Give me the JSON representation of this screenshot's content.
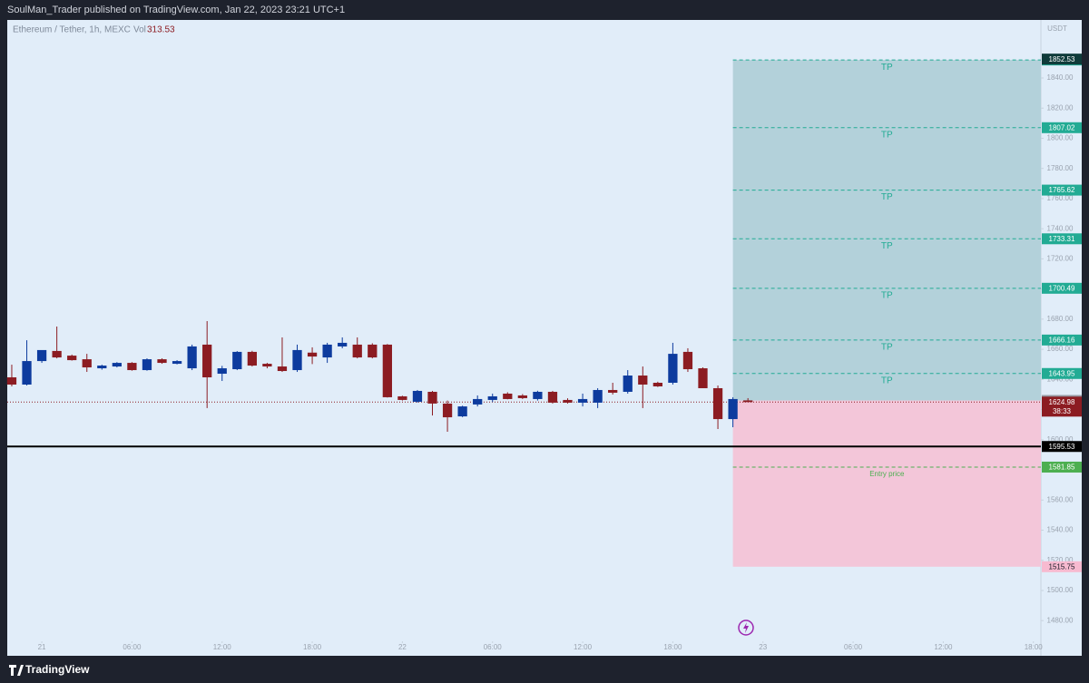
{
  "header": {
    "text": "SoulMan_Trader published on TradingView.com, Jan 22, 2023 23:21 UTC+1"
  },
  "footer": {
    "brand": "TradingView"
  },
  "chart_data": {
    "type": "candlestick",
    "symbol": "Ethereum / Tether, 1h, MEXC",
    "volume_label": "Vol",
    "volume": 313.53,
    "currency": "USDT",
    "up_color": "#0d3b9e",
    "down_color": "#8c1c22",
    "x": [
      -2,
      -1,
      0,
      1,
      2,
      3,
      4,
      5,
      6,
      7,
      8,
      9,
      10,
      11,
      12,
      13,
      14,
      15,
      16,
      17,
      18,
      19,
      20,
      21,
      22,
      23,
      24,
      25,
      26,
      27,
      28,
      29,
      30,
      31,
      32,
      33,
      34,
      35,
      36,
      37,
      38,
      39,
      40,
      41,
      42,
      43,
      44,
      45,
      46,
      47
    ],
    "open": [
      1641.4,
      1636.6,
      1652.2,
      1658.9,
      1655.8,
      1653.4,
      1647.4,
      1648.6,
      1651.0,
      1646.2,
      1653.4,
      1650.4,
      1647.4,
      1663.1,
      1643.8,
      1646.8,
      1658.3,
      1650.4,
      1648.6,
      1646.2,
      1657.8,
      1654.6,
      1661.9,
      1663.1,
      1663.1,
      1663.1,
      1628.8,
      1625.2,
      1631.8,
      1624.0,
      1615.5,
      1623.4,
      1626.4,
      1630.6,
      1629.4,
      1627.0,
      1631.8,
      1626.4,
      1624.6,
      1624.6,
      1633.0,
      1631.8,
      1642.6,
      1637.8,
      1637.8,
      1658.3,
      1647.4,
      1634.2,
      1613.7,
      1626.1
    ],
    "high": [
      1649.8,
      1666.0,
      1655.8,
      1675.1,
      1656.5,
      1657.0,
      1649.8,
      1651.5,
      1651.5,
      1654.0,
      1654.0,
      1652.8,
      1663.1,
      1678.7,
      1649.0,
      1658.8,
      1659.0,
      1651.0,
      1667.9,
      1663.1,
      1661.3,
      1664.3,
      1667.9,
      1667.9,
      1664.0,
      1663.5,
      1629.2,
      1633.0,
      1632.4,
      1626.0,
      1622.6,
      1629.4,
      1630.6,
      1631.5,
      1630.3,
      1632.5,
      1632.4,
      1627.5,
      1630.6,
      1634.2,
      1637.8,
      1646.2,
      1648.6,
      1638.5,
      1664.3,
      1660.7,
      1648.0,
      1636.0,
      1628.2,
      1627.6
    ],
    "low": [
      1635.4,
      1636.0,
      1651.0,
      1654.0,
      1652.5,
      1645.0,
      1646.5,
      1648.0,
      1645.8,
      1645.8,
      1650.4,
      1650.0,
      1646.2,
      1621.0,
      1639.0,
      1646.2,
      1648.6,
      1647.4,
      1645.0,
      1645.0,
      1650.2,
      1651.0,
      1660.7,
      1654.0,
      1654.0,
      1628.0,
      1626.0,
      1624.6,
      1616.1,
      1605.3,
      1615.0,
      1622.1,
      1625.0,
      1626.8,
      1627.0,
      1626.0,
      1624.0,
      1624.0,
      1622.1,
      1621.0,
      1630.0,
      1630.6,
      1621.0,
      1635.0,
      1636.6,
      1645.0,
      1634.2,
      1607.1,
      1608.3,
      1625.0
    ],
    "close": [
      1636.6,
      1652.2,
      1659.5,
      1654.6,
      1652.8,
      1648.0,
      1649.2,
      1651.0,
      1646.2,
      1653.4,
      1651.0,
      1652.2,
      1661.9,
      1641.4,
      1647.4,
      1658.3,
      1649.2,
      1648.6,
      1645.6,
      1659.5,
      1655.2,
      1663.1,
      1664.3,
      1654.6,
      1654.6,
      1628.2,
      1626.4,
      1632.4,
      1624.0,
      1614.9,
      1622.1,
      1627.0,
      1628.8,
      1627.0,
      1627.6,
      1631.8,
      1624.6,
      1624.6,
      1627.0,
      1633.0,
      1631.2,
      1642.6,
      1636.6,
      1635.4,
      1657.0,
      1646.8,
      1634.2,
      1613.7,
      1627.0,
      1624.98
    ],
    "xlim": [
      -2.3,
      66.5
    ],
    "xticks": [
      {
        "value": 0,
        "label": "21"
      },
      {
        "value": 6,
        "label": "06:00"
      },
      {
        "value": 12,
        "label": "12:00"
      },
      {
        "value": 18,
        "label": "18:00"
      },
      {
        "value": 24,
        "label": "22"
      },
      {
        "value": 30,
        "label": "06:00"
      },
      {
        "value": 36,
        "label": "12:00"
      },
      {
        "value": 42,
        "label": "18:00"
      },
      {
        "value": 48,
        "label": "23"
      },
      {
        "value": 54,
        "label": "06:00"
      },
      {
        "value": 60,
        "label": "12:00"
      },
      {
        "value": 66,
        "label": "18:00"
      }
    ],
    "ylim": [
      1467.5,
      1878.5
    ],
    "yticks": [
      {
        "value": 1480,
        "label": "1480.00"
      },
      {
        "value": 1500,
        "label": "1500.00"
      },
      {
        "value": 1520,
        "label": "1520.00"
      },
      {
        "value": 1540,
        "label": "1540.00"
      },
      {
        "value": 1560,
        "label": "1560.00"
      },
      {
        "value": 1580,
        "label": "1580.00"
      },
      {
        "value": 1600,
        "label": "1600.00"
      },
      {
        "value": 1620,
        "label": "1620.00"
      },
      {
        "value": 1640,
        "label": "1640.00"
      },
      {
        "value": 1660,
        "label": "1660.00"
      },
      {
        "value": 1680,
        "label": "1680.00"
      },
      {
        "value": 1700,
        "label": "1700.00"
      },
      {
        "value": 1720,
        "label": "1720.00"
      },
      {
        "value": 1740,
        "label": "1740.00"
      },
      {
        "value": 1760,
        "label": "1760.00"
      },
      {
        "value": 1780,
        "label": "1780.00"
      },
      {
        "value": 1800,
        "label": "1800.00"
      },
      {
        "value": 1820,
        "label": "1820.00"
      },
      {
        "value": 1840,
        "label": "1840.00"
      }
    ],
    "position": {
      "x_start": 46,
      "target": 1851.95,
      "entry": 1626.06,
      "stop": 1515.75,
      "profit_color": "#b3d1da",
      "loss_color": "#f3c6d9",
      "entry_color": "#9598a1",
      "stop_color": "#f7bad0"
    },
    "levels": [
      {
        "value": 1851.95,
        "label": "TP",
        "color": "#22ab94"
      },
      {
        "value": 1807.02,
        "label": "TP",
        "color": "#22ab94"
      },
      {
        "value": 1765.62,
        "label": "TP",
        "color": "#22ab94"
      },
      {
        "value": 1733.31,
        "label": "TP",
        "color": "#22ab94"
      },
      {
        "value": 1700.49,
        "label": "TP",
        "color": "#22ab94"
      },
      {
        "value": 1666.16,
        "label": "TP",
        "color": "#22ab94"
      },
      {
        "value": 1643.95,
        "label": "TP",
        "color": "#22ab94"
      },
      {
        "value": 1581.85,
        "label": "Entry price",
        "color": "#4caf50"
      }
    ],
    "horizontal_line": {
      "value": 1595.53,
      "color": "#000000"
    },
    "last_price": {
      "value": 1624.98,
      "countdown": "38:33",
      "color": "#8c1c22"
    },
    "crosshair_price": {
      "value": 1852.53,
      "color": "#0f3b3a"
    }
  }
}
